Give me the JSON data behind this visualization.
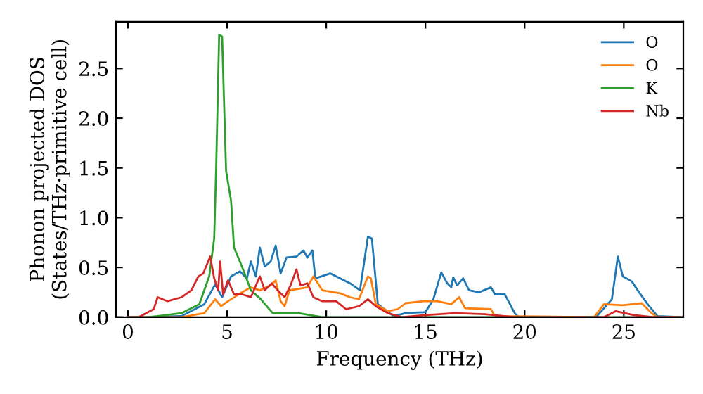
{
  "chart_data": {
    "type": "line",
    "xlabel": "Frequency (THz)",
    "ylabel": "Phonon projected DOS\n(States/THz·primitive cell)",
    "xlim": [
      -0.6,
      28
    ],
    "ylim": [
      0,
      2.97
    ],
    "xticks": [
      0,
      5,
      10,
      15,
      20,
      25
    ],
    "yticks": [
      {
        "value": 0,
        "label": "0.0"
      },
      0.5,
      {
        "value": 1,
        "label": "1.0"
      },
      1.5,
      {
        "value": 2,
        "label": "2.0"
      },
      2.5
    ],
    "legend": "top right",
    "grid": false,
    "marker": "none",
    "line_style": "solid",
    "series": [
      {
        "name": "O",
        "color": "#1f77b4",
        "x": [
          0,
          1,
          2.7,
          3.85,
          4.4,
          4.75,
          5.2,
          5.65,
          6.0,
          6.2,
          6.45,
          6.65,
          6.9,
          7.2,
          7.45,
          7.7,
          8.0,
          8.5,
          8.85,
          9.05,
          9.3,
          9.45,
          10.2,
          11.2,
          11.7,
          12.1,
          12.3,
          12.6,
          13.4,
          14.0,
          15.0,
          15.4,
          15.8,
          16.1,
          16.3,
          16.4,
          16.6,
          16.9,
          17.2,
          17.7,
          18.3,
          18.5,
          19.0,
          19.5,
          19.7,
          23.6,
          24.4,
          24.7,
          24.95,
          25.4,
          25.7,
          26.2,
          26.7,
          28
        ],
        "values": [
          0,
          0,
          0.01,
          0.13,
          0.33,
          0.2,
          0.41,
          0.46,
          0.39,
          0.56,
          0.41,
          0.7,
          0.51,
          0.56,
          0.72,
          0.44,
          0.6,
          0.61,
          0.67,
          0.6,
          0.67,
          0.39,
          0.44,
          0.34,
          0.27,
          0.81,
          0.79,
          0.13,
          0.01,
          0.04,
          0.05,
          0.18,
          0.45,
          0.34,
          0.3,
          0.4,
          0.32,
          0.39,
          0.27,
          0.25,
          0.3,
          0.23,
          0.23,
          0.04,
          0,
          0,
          0.18,
          0.61,
          0.41,
          0.36,
          0.27,
          0.13,
          0.01,
          0
        ]
      },
      {
        "name": "O",
        "color": "#ff7f0e",
        "x": [
          0,
          2.7,
          3.85,
          4.4,
          4.7,
          5.05,
          5.75,
          6.2,
          6.65,
          7.2,
          7.45,
          7.7,
          7.9,
          8.15,
          9.05,
          9.35,
          9.8,
          10.7,
          11.2,
          11.65,
          12.1,
          12.25,
          12.5,
          13.1,
          13.6,
          14.0,
          14.9,
          15.6,
          16.3,
          16.7,
          17.0,
          18.3,
          18.5,
          23.5,
          24.0,
          24.95,
          25.9,
          26.4,
          26.7,
          28
        ],
        "values": [
          0,
          0,
          0.04,
          0.18,
          0.11,
          0.16,
          0.25,
          0.3,
          0.27,
          0.32,
          0.37,
          0.16,
          0.11,
          0.27,
          0.3,
          0.41,
          0.27,
          0.24,
          0.2,
          0.18,
          0.41,
          0.39,
          0.13,
          0.06,
          0.08,
          0.14,
          0.16,
          0.16,
          0.13,
          0.2,
          0.09,
          0.08,
          0.01,
          0,
          0.13,
          0.12,
          0.14,
          0.04,
          0,
          0
        ]
      },
      {
        "name": "K",
        "color": "#2ca02c",
        "x": [
          0,
          1,
          1.5,
          2.7,
          3.6,
          4.1,
          4.35,
          4.45,
          4.6,
          4.75,
          4.95,
          5.2,
          5.35,
          5.75,
          6.2,
          6.7,
          7.3,
          8.6,
          9.8,
          28
        ],
        "values": [
          0,
          0,
          0.01,
          0.04,
          0.13,
          0.41,
          0.79,
          1.5,
          2.84,
          2.82,
          1.47,
          1.17,
          0.7,
          0.51,
          0.27,
          0.18,
          0.04,
          0.04,
          0,
          0
        ]
      },
      {
        "name": "Nb",
        "color": "#d62728",
        "x": [
          0,
          0.55,
          1.3,
          1.5,
          2.0,
          2.7,
          3.2,
          3.55,
          3.8,
          4.15,
          4.35,
          4.55,
          4.65,
          4.8,
          5.05,
          5.35,
          5.75,
          6.2,
          6.65,
          6.9,
          7.25,
          7.55,
          7.9,
          8.2,
          8.5,
          8.7,
          9.05,
          9.35,
          9.8,
          10.5,
          11.0,
          11.65,
          12.1,
          12.5,
          13.1,
          13.8,
          15.0,
          16.5,
          18.0,
          19.5,
          24.0,
          24.6,
          25.5,
          26.5,
          28
        ],
        "values": [
          0,
          0,
          0.08,
          0.2,
          0.16,
          0.2,
          0.27,
          0.41,
          0.44,
          0.61,
          0.39,
          0.27,
          0.56,
          0.23,
          0.37,
          0.23,
          0.23,
          0.2,
          0.41,
          0.27,
          0.34,
          0.27,
          0.2,
          0.32,
          0.48,
          0.32,
          0.34,
          0.2,
          0.16,
          0.16,
          0.08,
          0.11,
          0.18,
          0.11,
          0.04,
          0,
          0.02,
          0.04,
          0.03,
          0,
          0,
          0.06,
          0.02,
          0,
          0
        ]
      }
    ]
  }
}
